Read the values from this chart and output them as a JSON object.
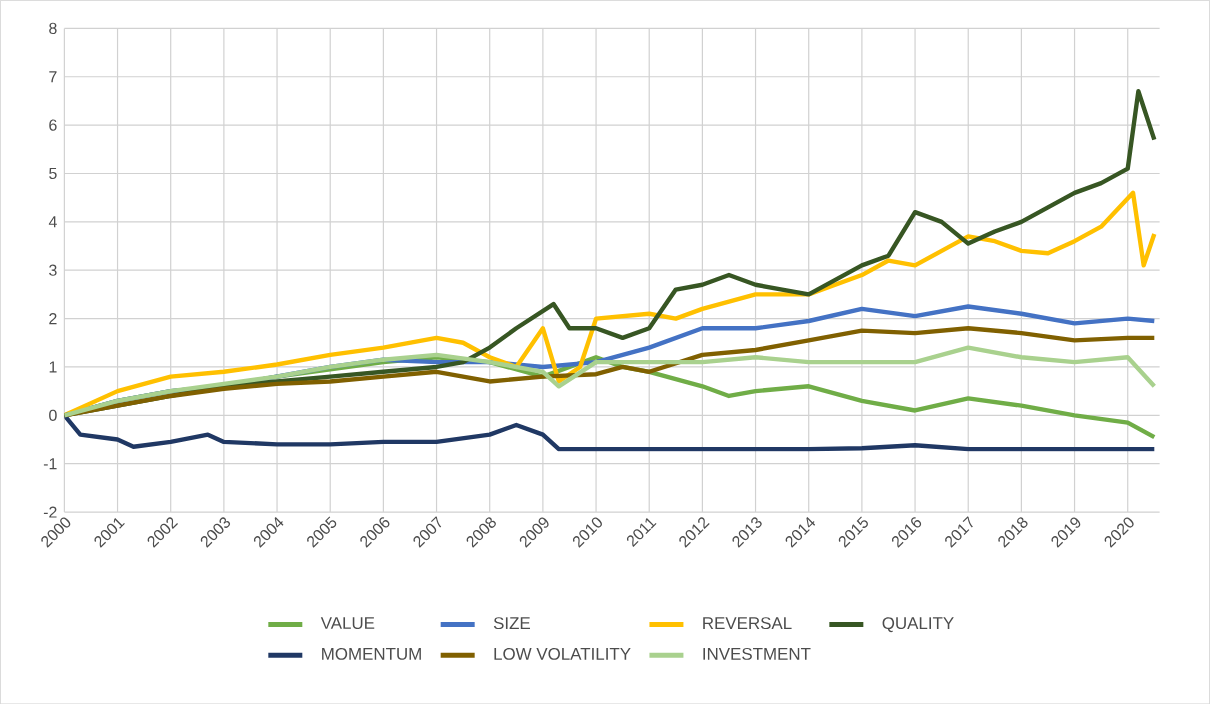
{
  "chart_data": {
    "type": "line",
    "xlim": [
      2000,
      2020.6
    ],
    "ylim": [
      -2,
      8
    ],
    "xticks": [
      2000,
      2001,
      2002,
      2003,
      2004,
      2005,
      2006,
      2007,
      2008,
      2009,
      2010,
      2011,
      2012,
      2013,
      2014,
      2015,
      2016,
      2017,
      2018,
      2019,
      2020
    ],
    "yticks": [
      -2,
      -1,
      0,
      1,
      2,
      3,
      4,
      5,
      6,
      7,
      8
    ],
    "grid": true,
    "legend": "bottom",
    "series": [
      {
        "name": "VALUE",
        "color": "#70ad47",
        "x": [
          2000,
          2001,
          2002,
          2003,
          2004,
          2005,
          2006,
          2007,
          2008,
          2009,
          2010,
          2010.5,
          2011,
          2012,
          2012.5,
          2013,
          2014,
          2015,
          2016,
          2017,
          2018,
          2019,
          2020,
          2020.5
        ],
        "values": [
          0,
          0.3,
          0.5,
          0.6,
          0.8,
          0.95,
          1.1,
          1.2,
          1.1,
          0.8,
          1.2,
          1.0,
          0.9,
          0.6,
          0.4,
          0.5,
          0.6,
          0.3,
          0.1,
          0.35,
          0.2,
          0,
          -0.15,
          -0.45
        ]
      },
      {
        "name": "SIZE",
        "color": "#4472c4",
        "x": [
          2000,
          2001,
          2002,
          2003,
          2004,
          2005,
          2006,
          2007,
          2008,
          2009,
          2010,
          2011,
          2012,
          2013,
          2014,
          2015,
          2016,
          2017,
          2018,
          2019,
          2020,
          2020.5
        ],
        "values": [
          0,
          0.3,
          0.5,
          0.6,
          0.8,
          1.0,
          1.15,
          1.1,
          1.1,
          1.0,
          1.1,
          1.4,
          1.8,
          1.8,
          1.95,
          2.2,
          2.05,
          2.25,
          2.1,
          1.9,
          2.0,
          1.95
        ]
      },
      {
        "name": "REVERSAL",
        "color": "#ffc000",
        "x": [
          2000,
          2001,
          2002,
          2003,
          2004,
          2005,
          2006,
          2007,
          2007.5,
          2008,
          2008.5,
          2009,
          2009.3,
          2009.7,
          2010,
          2011,
          2011.5,
          2012,
          2013,
          2014,
          2014.5,
          2015,
          2015.5,
          2016,
          2016.5,
          2017,
          2017.5,
          2018,
          2018.5,
          2019,
          2019.5,
          2020.1,
          2020.3,
          2020.5
        ],
        "values": [
          0,
          0.5,
          0.8,
          0.9,
          1.05,
          1.25,
          1.4,
          1.6,
          1.5,
          1.2,
          1.0,
          1.8,
          0.7,
          1.0,
          2.0,
          2.1,
          2.0,
          2.2,
          2.5,
          2.5,
          2.7,
          2.9,
          3.2,
          3.1,
          3.4,
          3.7,
          3.6,
          3.4,
          3.35,
          3.6,
          3.9,
          4.6,
          3.1,
          3.75
        ]
      },
      {
        "name": "QUALITY",
        "color": "#375623",
        "x": [
          2000,
          2001,
          2002,
          2003,
          2004,
          2005,
          2006,
          2007,
          2007.5,
          2008,
          2008.5,
          2009.2,
          2009.5,
          2010,
          2010.5,
          2011,
          2011.5,
          2012,
          2012.5,
          2013,
          2013.5,
          2014,
          2014.5,
          2015,
          2015.5,
          2016,
          2016.5,
          2017,
          2017.5,
          2018,
          2018.5,
          2019,
          2019.5,
          2020,
          2020.2,
          2020.5
        ],
        "values": [
          0,
          0.2,
          0.4,
          0.6,
          0.7,
          0.8,
          0.9,
          1.0,
          1.1,
          1.4,
          1.8,
          2.3,
          1.8,
          1.8,
          1.6,
          1.8,
          2.6,
          2.7,
          2.9,
          2.7,
          2.6,
          2.5,
          2.8,
          3.1,
          3.3,
          4.2,
          4.0,
          3.55,
          3.8,
          4.0,
          4.3,
          4.6,
          4.8,
          5.1,
          6.7,
          5.7
        ]
      },
      {
        "name": "MOMENTUM",
        "color": "#203864",
        "x": [
          2000,
          2000.3,
          2001,
          2001.3,
          2002,
          2002.7,
          2003,
          2004,
          2005,
          2006,
          2007,
          2008,
          2008.5,
          2009,
          2009.3,
          2010,
          2011,
          2012,
          2013,
          2014,
          2015,
          2016,
          2017,
          2018,
          2019,
          2020,
          2020.5
        ],
        "values": [
          0,
          -0.4,
          -0.5,
          -0.65,
          -0.55,
          -0.4,
          -0.55,
          -0.6,
          -0.6,
          -0.55,
          -0.55,
          -0.4,
          -0.2,
          -0.4,
          -0.7,
          -0.7,
          -0.7,
          -0.7,
          -0.7,
          -0.7,
          -0.68,
          -0.62,
          -0.7,
          -0.7,
          -0.7,
          -0.7,
          -0.7
        ]
      },
      {
        "name": "LOW VOLATILITY",
        "color": "#806000",
        "x": [
          2000,
          2001,
          2002,
          2003,
          2004,
          2005,
          2006,
          2007,
          2008,
          2009,
          2010,
          2010.5,
          2011,
          2012,
          2013,
          2014,
          2015,
          2016,
          2017,
          2018,
          2019,
          2020,
          2020.5
        ],
        "values": [
          0,
          0.2,
          0.4,
          0.55,
          0.65,
          0.7,
          0.8,
          0.9,
          0.7,
          0.8,
          0.85,
          1.0,
          0.9,
          1.25,
          1.35,
          1.55,
          1.75,
          1.7,
          1.8,
          1.7,
          1.55,
          1.6,
          1.6
        ]
      },
      {
        "name": "INVESTMENT",
        "color": "#a9d18e",
        "x": [
          2000,
          2001,
          2002,
          2003,
          2004,
          2005,
          2006,
          2007,
          2008,
          2009,
          2009.3,
          2010,
          2011,
          2012,
          2013,
          2014,
          2015,
          2016,
          2017,
          2018,
          2019,
          2020,
          2020.5
        ],
        "values": [
          0,
          0.3,
          0.5,
          0.65,
          0.8,
          1.0,
          1.15,
          1.25,
          1.1,
          0.9,
          0.6,
          1.1,
          1.1,
          1.1,
          1.2,
          1.1,
          1.1,
          1.1,
          1.4,
          1.2,
          1.1,
          1.2,
          0.6
        ]
      }
    ]
  }
}
